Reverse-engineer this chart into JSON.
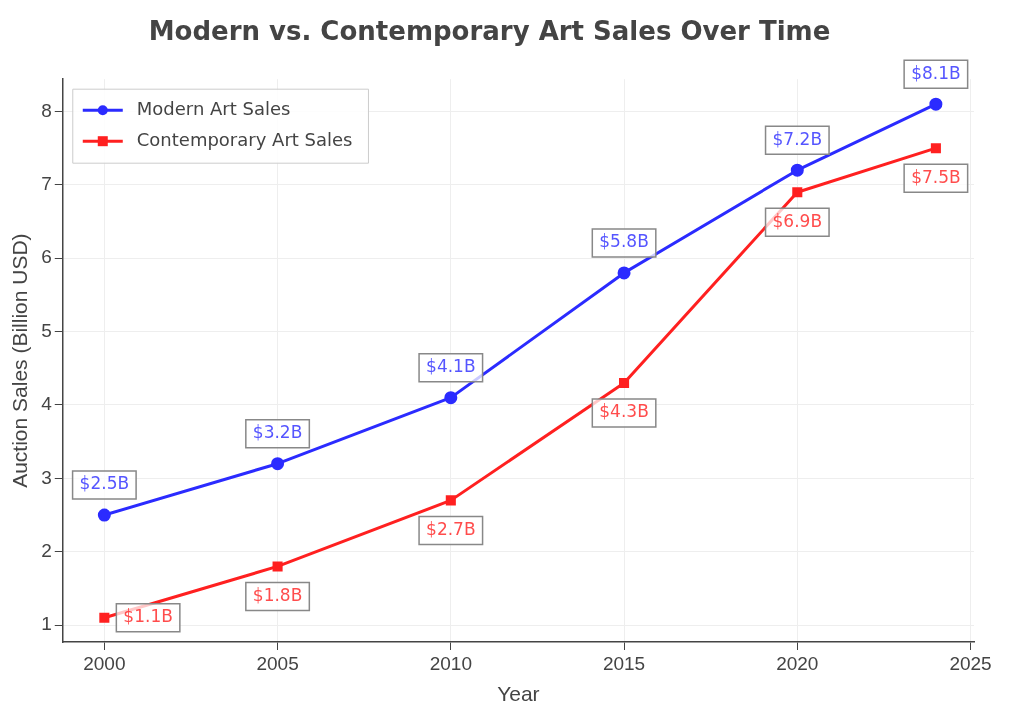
{
  "chart_data": {
    "type": "line",
    "title": "Modern vs. Contemporary Art Sales Over Time",
    "xlabel": "Year",
    "ylabel": "Auction Sales (Billion USD)",
    "x": [
      2000,
      2005,
      2010,
      2015,
      2020,
      2024
    ],
    "series": [
      {
        "name": "Modern Art Sales",
        "color": "#2b2bff",
        "marker": "circle",
        "values": [
          2.5,
          3.2,
          4.1,
          5.8,
          7.2,
          8.1
        ],
        "value_labels": [
          "$2.5B",
          "$3.2B",
          "$4.1B",
          "$5.8B",
          "$7.2B",
          "$8.1B"
        ]
      },
      {
        "name": "Contemporary Art Sales",
        "color": "#ff2020",
        "marker": "square",
        "values": [
          1.1,
          1.8,
          2.7,
          4.3,
          6.9,
          7.5
        ],
        "value_labels": [
          "$1.1B",
          "$1.8B",
          "$2.7B",
          "$4.3B",
          "$6.9B",
          "$7.5B"
        ]
      }
    ],
    "xlim": [
      1998.8,
      2025.1
    ],
    "xticks": [
      2000,
      2005,
      2010,
      2015,
      2020,
      2025
    ],
    "ylim": [
      0.77,
      8.44
    ],
    "yticks": [
      1,
      2,
      3,
      4,
      5,
      6,
      7,
      8
    ],
    "grid": true,
    "legend": "top left",
    "line_style": "solid"
  }
}
